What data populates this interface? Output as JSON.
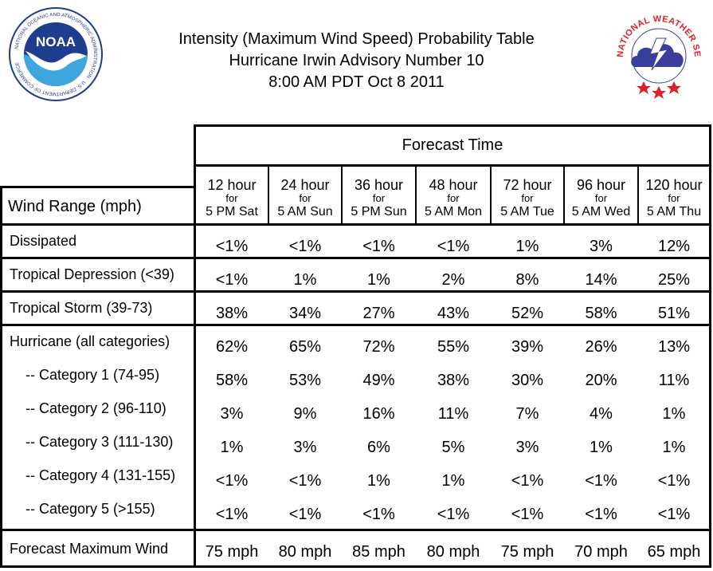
{
  "header": {
    "title_line1": "Intensity (Maximum Wind Speed) Probability Table",
    "title_line2": "Hurricane Irwin Advisory Number 10",
    "title_line3": "8:00 AM PDT Oct 8 2011",
    "noaa_logo_text": "NOAA",
    "noaa_ring_text": "NATIONAL OCEANIC AND ATMOSPHERIC ADMINISTRATION · U.S. DEPARTMENT OF COMMERCE",
    "nws_ring_text": "NATIONAL WEATHER SERVICE"
  },
  "table": {
    "forecast_time_label": "Forecast Time",
    "wind_range_label": "Wind Range (mph)",
    "columns": [
      {
        "hours": "12 hour",
        "for": "for",
        "when": "5 PM Sat"
      },
      {
        "hours": "24 hour",
        "for": "for",
        "when": "5 AM Sun"
      },
      {
        "hours": "36 hour",
        "for": "for",
        "when": "5 PM Sun"
      },
      {
        "hours": "48 hour",
        "for": "for",
        "when": "5 AM Mon"
      },
      {
        "hours": "72 hour",
        "for": "for",
        "when": "5 AM Tue"
      },
      {
        "hours": "96 hour",
        "for": "for",
        "when": "5 AM Wed"
      },
      {
        "hours": "120 hour",
        "for": "for",
        "when": "5 AM Thu"
      }
    ],
    "rows": [
      {
        "label": "Dissipated",
        "values": [
          "<1%",
          "<1%",
          "<1%",
          "<1%",
          "1%",
          "3%",
          "12%"
        ]
      },
      {
        "label": "Tropical Depression (<39)",
        "values": [
          "<1%",
          "1%",
          "1%",
          "2%",
          "8%",
          "14%",
          "25%"
        ]
      },
      {
        "label": "Tropical Storm (39-73)",
        "values": [
          "38%",
          "34%",
          "27%",
          "43%",
          "52%",
          "58%",
          "51%"
        ]
      },
      {
        "label": "Hurricane (all categories)",
        "values": [
          "62%",
          "65%",
          "72%",
          "55%",
          "39%",
          "26%",
          "13%"
        ]
      },
      {
        "label": "-- Category 1 (74-95)",
        "values": [
          "58%",
          "53%",
          "49%",
          "38%",
          "30%",
          "20%",
          "11%"
        ]
      },
      {
        "label": "-- Category 2 (96-110)",
        "values": [
          "3%",
          "9%",
          "16%",
          "11%",
          "7%",
          "4%",
          "1%"
        ]
      },
      {
        "label": "-- Category 3 (111-130)",
        "values": [
          "1%",
          "3%",
          "6%",
          "5%",
          "3%",
          "1%",
          "1%"
        ]
      },
      {
        "label": "-- Category 4 (131-155)",
        "values": [
          "<1%",
          "<1%",
          "1%",
          "1%",
          "<1%",
          "<1%",
          "<1%"
        ]
      },
      {
        "label": "-- Category 5 (>155)",
        "values": [
          "<1%",
          "<1%",
          "<1%",
          "<1%",
          "<1%",
          "<1%",
          "<1%"
        ]
      }
    ],
    "max_wind": {
      "label": "Forecast Maximum Wind",
      "values": [
        "75 mph",
        "80 mph",
        "85 mph",
        "80 mph",
        "75 mph",
        "70 mph",
        "65 mph"
      ]
    }
  },
  "colors": {
    "grid_line": "#000000",
    "noaa_blue": "#1f3d8f",
    "noaa_light_blue": "#3fa7e0",
    "nws_red": "#d9222a",
    "nws_cloud": "#3a3f9c"
  }
}
